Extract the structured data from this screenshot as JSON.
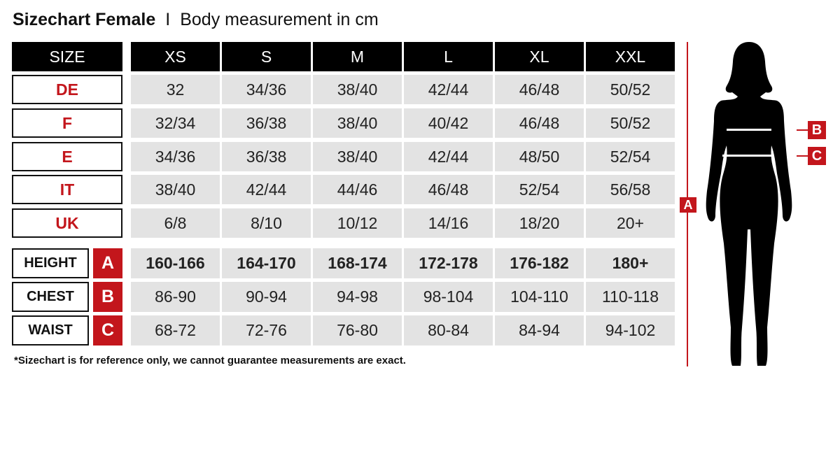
{
  "title": {
    "main": "Sizechart Female",
    "separator": "I",
    "subtitle": "Body measurement in cm"
  },
  "header": {
    "label": "SIZE",
    "sizes": [
      "XS",
      "S",
      "M",
      "L",
      "XL",
      "XXL"
    ]
  },
  "regions": [
    {
      "label": "DE",
      "values": [
        "32",
        "34/36",
        "38/40",
        "42/44",
        "46/48",
        "50/52"
      ]
    },
    {
      "label": "F",
      "values": [
        "32/34",
        "36/38",
        "38/40",
        "40/42",
        "46/48",
        "50/52"
      ]
    },
    {
      "label": "E",
      "values": [
        "34/36",
        "36/38",
        "38/40",
        "42/44",
        "48/50",
        "52/54"
      ]
    },
    {
      "label": "IT",
      "values": [
        "38/40",
        "42/44",
        "44/46",
        "46/48",
        "52/54",
        "56/58"
      ]
    },
    {
      "label": "UK",
      "values": [
        "6/8",
        "8/10",
        "10/12",
        "14/16",
        "18/20",
        "20+"
      ]
    }
  ],
  "measurements": [
    {
      "label": "HEIGHT",
      "marker": "A",
      "values": [
        "160-166",
        "164-170",
        "168-174",
        "172-178",
        "176-182",
        "180+"
      ]
    },
    {
      "label": "CHEST",
      "marker": "B",
      "values": [
        "86-90",
        "90-94",
        "94-98",
        "98-104",
        "104-110",
        "110-118"
      ]
    },
    {
      "label": "WAIST",
      "marker": "C",
      "values": [
        "68-72",
        "72-76",
        "76-80",
        "80-84",
        "84-94",
        "94-102"
      ]
    }
  ],
  "figure": {
    "height_marker": "A",
    "chest_marker": "B",
    "waist_marker": "C"
  },
  "footnote": "*Sizechart is for reference only, we cannot guarantee measurements are exact.",
  "colors": {
    "accent": "#c3161c",
    "header": "#000000",
    "cell": "#e3e3e3"
  }
}
